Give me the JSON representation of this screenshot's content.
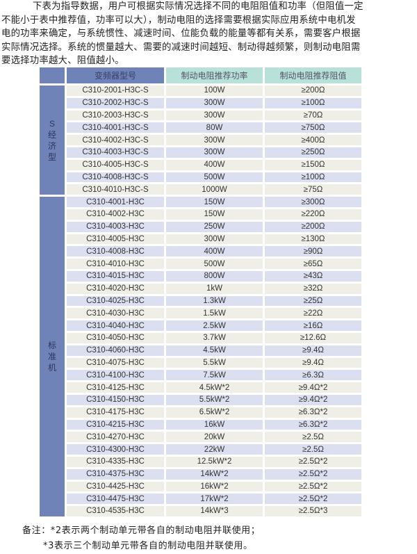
{
  "intro": {
    "lines": [
      "下表为指导数据，用户可根据实际情况选择不同的电阻阻值和功率（但阻值一定",
      "不能小于表中推荐值，功率可以大），制动电阻的选择需要根据实际应用系统中电机发",
      "电的功率来确定，与系统惯性、减速时间、位能负载的能量等都有关系，需要客户根据",
      "实际情况选择。系统的惯量越大、需要的减速时间越短、制动得越频繁，则制动电阻需",
      "要选择功率越大、阻值越小。"
    ]
  },
  "table": {
    "headers": {
      "model": "变频器型号",
      "power": "制动电阻推荐功率",
      "resistance": "制动电阻推荐阻值"
    },
    "groups": [
      {
        "label": "S经济型",
        "rows": [
          [
            "C310-2001-H3C-S",
            "100W",
            "≥200Ω"
          ],
          [
            "C310-2002-H3C-S",
            "300W",
            "≥100Ω"
          ],
          [
            "C310-2003-H3C-S",
            "300W",
            "≥70Ω"
          ],
          [
            "C310-4001-H3C-S",
            "80W",
            "≥750Ω"
          ],
          [
            "C310-4002-H3C-S",
            "300W",
            "≥400Ω"
          ],
          [
            "C310-4003-H3C-S",
            "300W",
            "≥250Ω"
          ],
          [
            "C310-4005-H3C-S",
            "400W",
            "≥150Ω"
          ],
          [
            "C310-4008-H3C-S",
            "500W",
            "≥100Ω"
          ],
          [
            "C310-4010-H3C-S",
            "1000W",
            "≥75Ω"
          ]
        ]
      },
      {
        "label": "标准机",
        "rows": [
          [
            "C310-4001-H3C",
            "150W",
            "≥300Ω"
          ],
          [
            "C310-4002-H3C",
            "150W",
            "≥220Ω"
          ],
          [
            "C310-4003-H3C",
            "250W",
            "≥200Ω"
          ],
          [
            "C310-4005-H3C",
            "300W",
            "≥130Ω"
          ],
          [
            "C310-4008-H3C",
            "400W",
            "≥90Ω"
          ],
          [
            "C310-4010-H3C",
            "500W",
            "≥65Ω"
          ],
          [
            "C310-4015-H3C",
            "800W",
            "≥43Ω"
          ],
          [
            "C310-4020-H3C",
            "1kW",
            "≥32Ω"
          ],
          [
            "C310-4025-H3C",
            "1.3kW",
            "≥25Ω"
          ],
          [
            "C310-4030-H3C",
            "1.5kW",
            "≥22Ω"
          ],
          [
            "C310-4040-H3C",
            "2.5kW",
            "≥16Ω"
          ],
          [
            "C310-4050-H3C",
            "3.7kW",
            "≥12.6Ω"
          ],
          [
            "C310-4060-H3C",
            "4.5kW",
            "≥9.4Ω"
          ],
          [
            "C310-4075-H3C",
            "5.5kW",
            "≥9.4Ω"
          ],
          [
            "C310-4100-H3C",
            "7.5kW",
            "≥6.3Ω"
          ],
          [
            "C310-4125-H3C",
            "4.5kW*2",
            "≥9.4Ω*2"
          ],
          [
            "C310-4150-H3C",
            "5.5kW*2",
            "≥9.4Ω*2"
          ],
          [
            "C310-4175-H3C",
            "6.5kW*2",
            "≥6.3Ω*2"
          ],
          [
            "C310-4215-H3C",
            "16kW",
            "≥6.3Ω*2"
          ],
          [
            "C310-4270-H3C",
            "20kW",
            "≥2.5Ω"
          ],
          [
            "C310-4300-H3C",
            "22kW",
            "≥2.5Ω"
          ],
          [
            "C310-4335-H3C",
            "12.5kW*2",
            "≥2.5Ω*2"
          ],
          [
            "C310-4375-H3C",
            "14kW*2",
            "≥2.5Ω*2"
          ],
          [
            "C310-4425-H3C",
            "16kW*2",
            "≥2.5Ω*2"
          ],
          [
            "C310-4475-H3C",
            "17kW*2",
            "≥2.5Ω*2"
          ],
          [
            "C310-4535-H3C",
            "14kW*3",
            "≥2.5Ω*3"
          ]
        ]
      }
    ]
  },
  "notes": {
    "line1": "备注：*2表示两个制动单元带各自的制动电阻并联使用；",
    "line2": "*3表示三个制动单元带各自的制动电阻并联使用。"
  }
}
